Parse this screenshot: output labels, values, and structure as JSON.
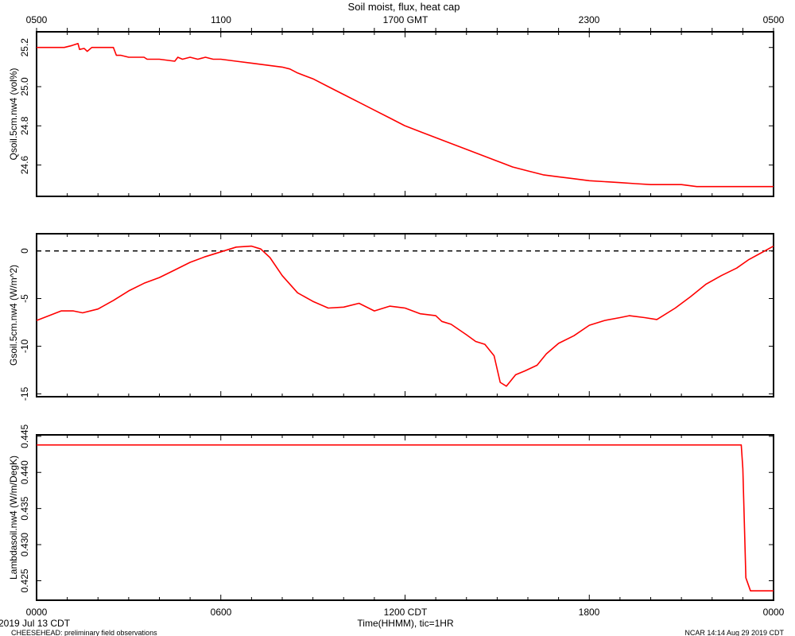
{
  "header": {
    "title": "Soil moist, flux, heat cap"
  },
  "top_axis": {
    "labels": [
      "0500",
      "1100",
      "1700 GMT",
      "2300",
      "0500"
    ]
  },
  "bottom_axis": {
    "labels": [
      "0000",
      "0600",
      "1200 CDT",
      "1800",
      "0000"
    ],
    "xlabel": "Time(HHMM), tic=1HR"
  },
  "footer": {
    "date": "2019 Jul 13 CDT",
    "project": "CHEESEHEAD: preliminary field observations",
    "stamp": "NCAR 14:14 Aug 29 2019 CDT"
  },
  "colors": {
    "trace": "#ff0000",
    "axes": "#000000",
    "background": "#ffffff"
  },
  "chart_data": [
    {
      "type": "line",
      "ylabel": "Qsoil.5cm.nw4 (vol%)",
      "ylim": [
        24.44,
        25.28
      ],
      "yticks": [
        24.6,
        24.8,
        25.0,
        25.2
      ],
      "ytick_labels": [
        "24.6",
        "24.8",
        "25.0",
        "25.2"
      ],
      "xlim": [
        0,
        24
      ],
      "series": [
        {
          "x": [
            0,
            0.5,
            0.9,
            1.15,
            1.35,
            1.4,
            1.55,
            1.65,
            1.8,
            1.9,
            2.0,
            2.5,
            2.6,
            2.75,
            3.0,
            3.5,
            3.6,
            4.0,
            4.5,
            4.6,
            4.75,
            5.0,
            5.25,
            5.5,
            5.75,
            6.0,
            6.5,
            7.0,
            7.5,
            8.0,
            8.25,
            8.5,
            9.0,
            9.5,
            10.0,
            10.5,
            11.0,
            11.5,
            12.0,
            12.5,
            13.0,
            13.5,
            14.0,
            14.5,
            15.0,
            15.5,
            16.0,
            16.5,
            17.0,
            17.5,
            18.0,
            18.5,
            19.0,
            19.5,
            20.0,
            20.5,
            21.0,
            21.5,
            22.0,
            22.5,
            23.0,
            23.5,
            24.0
          ],
          "y": [
            25.2,
            25.2,
            25.2,
            25.21,
            25.22,
            25.19,
            25.195,
            25.18,
            25.2,
            25.2,
            25.2,
            25.2,
            25.16,
            25.16,
            25.15,
            25.15,
            25.14,
            25.14,
            25.13,
            25.15,
            25.14,
            25.15,
            25.14,
            25.15,
            25.14,
            25.14,
            25.13,
            25.12,
            25.11,
            25.1,
            25.09,
            25.07,
            25.04,
            25.0,
            24.96,
            24.92,
            24.88,
            24.84,
            24.8,
            24.77,
            24.74,
            24.71,
            24.68,
            24.65,
            24.62,
            24.59,
            24.57,
            24.55,
            24.54,
            24.53,
            24.52,
            24.515,
            24.51,
            24.505,
            24.5,
            24.5,
            24.5,
            24.49,
            24.49,
            24.49,
            24.49,
            24.49,
            24.49
          ]
        }
      ]
    },
    {
      "type": "line",
      "ylabel": "Gsoil.5cm.nw4 (W/m^2)",
      "ylim": [
        -15.3,
        1.8
      ],
      "yticks": [
        -15,
        -10,
        -5,
        0
      ],
      "ytick_labels": [
        "-15",
        "-10",
        "-5",
        "0"
      ],
      "reference_line": 0,
      "xlim": [
        0,
        24
      ],
      "series": [
        {
          "x": [
            0,
            0.4,
            0.8,
            1.2,
            1.5,
            2.0,
            2.5,
            3.0,
            3.5,
            4.0,
            4.5,
            5.0,
            5.5,
            6.0,
            6.5,
            7.0,
            7.3,
            7.6,
            8.0,
            8.5,
            9.0,
            9.5,
            10.0,
            10.5,
            11.0,
            11.5,
            12.0,
            12.5,
            13.0,
            13.2,
            13.5,
            14.0,
            14.3,
            14.6,
            14.9,
            15.1,
            15.3,
            15.6,
            15.9,
            16.3,
            16.6,
            17.0,
            17.5,
            18.0,
            18.5,
            19.0,
            19.3,
            19.8,
            20.2,
            20.8,
            21.3,
            21.8,
            22.3,
            22.8,
            23.2,
            23.6,
            24.0
          ],
          "y": [
            -7.3,
            -6.8,
            -6.3,
            -6.3,
            -6.5,
            -6.1,
            -5.2,
            -4.2,
            -3.4,
            -2.8,
            -2.0,
            -1.2,
            -0.6,
            -0.1,
            0.4,
            0.5,
            0.2,
            -0.7,
            -2.6,
            -4.4,
            -5.3,
            -6.0,
            -5.9,
            -5.5,
            -6.3,
            -5.8,
            -6.0,
            -6.6,
            -6.8,
            -7.4,
            -7.7,
            -8.8,
            -9.5,
            -9.8,
            -11.0,
            -13.8,
            -14.2,
            -13.0,
            -12.6,
            -12.0,
            -10.8,
            -9.7,
            -8.9,
            -7.8,
            -7.3,
            -7.0,
            -6.8,
            -7.0,
            -7.2,
            -6.0,
            -4.8,
            -3.5,
            -2.6,
            -1.8,
            -0.9,
            -0.2,
            0.5
          ]
        }
      ]
    },
    {
      "type": "line",
      "ylabel": "Lambdasoil.nw4 (W/m/DegK)",
      "ylim": [
        0.4223,
        0.4452
      ],
      "yticks": [
        0.425,
        0.43,
        0.435,
        0.44,
        0.445
      ],
      "ytick_labels": [
        "0.425",
        "0.430",
        "0.435",
        "0.440",
        "0.445"
      ],
      "xlim": [
        0,
        24
      ],
      "series": [
        {
          "x": [
            0,
            22.95,
            23.0,
            23.1,
            23.25,
            24.0
          ],
          "y": [
            0.4438,
            0.4438,
            0.4405,
            0.4254,
            0.4236,
            0.4236
          ]
        }
      ]
    }
  ]
}
